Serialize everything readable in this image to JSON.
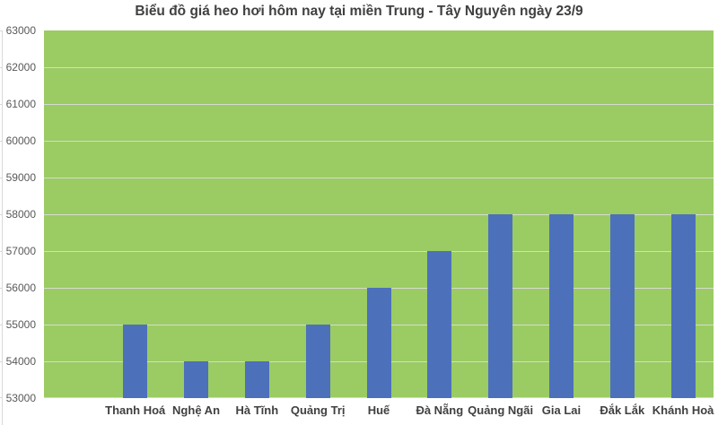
{
  "chart_data": {
    "type": "bar",
    "title": "Biểu đồ giá heo hơi hôm nay tại miền Trung - Tây Nguyên ngày 23/9",
    "categories": [
      "Thanh Hoá",
      "Nghệ An",
      "Hà Tĩnh",
      "Quảng Trị",
      "Huế",
      "Đà Nẵng",
      "Quảng Ngãi",
      "Gia Lai",
      "Đắk Lắk",
      "Khánh Hoà"
    ],
    "values": [
      55000,
      54000,
      54000,
      55000,
      56000,
      57000,
      58000,
      58000,
      58000,
      58000
    ],
    "xlabel": "",
    "ylabel": "",
    "ylim": [
      53000,
      63000
    ],
    "ytick_step": 1000,
    "ytick_labels": [
      "63000",
      "62000",
      "61000",
      "60000",
      "59000",
      "58000",
      "57000",
      "56000",
      "55000",
      "54000",
      "53000"
    ],
    "legend": "none",
    "grid": "horizontal",
    "leading_empty_category_slots": 1
  },
  "colors": {
    "plot_background": "#9BCB63",
    "bar": "#4D70BA",
    "gridline": "#D6DBD0",
    "title_text": "#404040",
    "axis_text": "#595959",
    "category_text": "#404040",
    "axis_line": "#D9D9D9"
  }
}
